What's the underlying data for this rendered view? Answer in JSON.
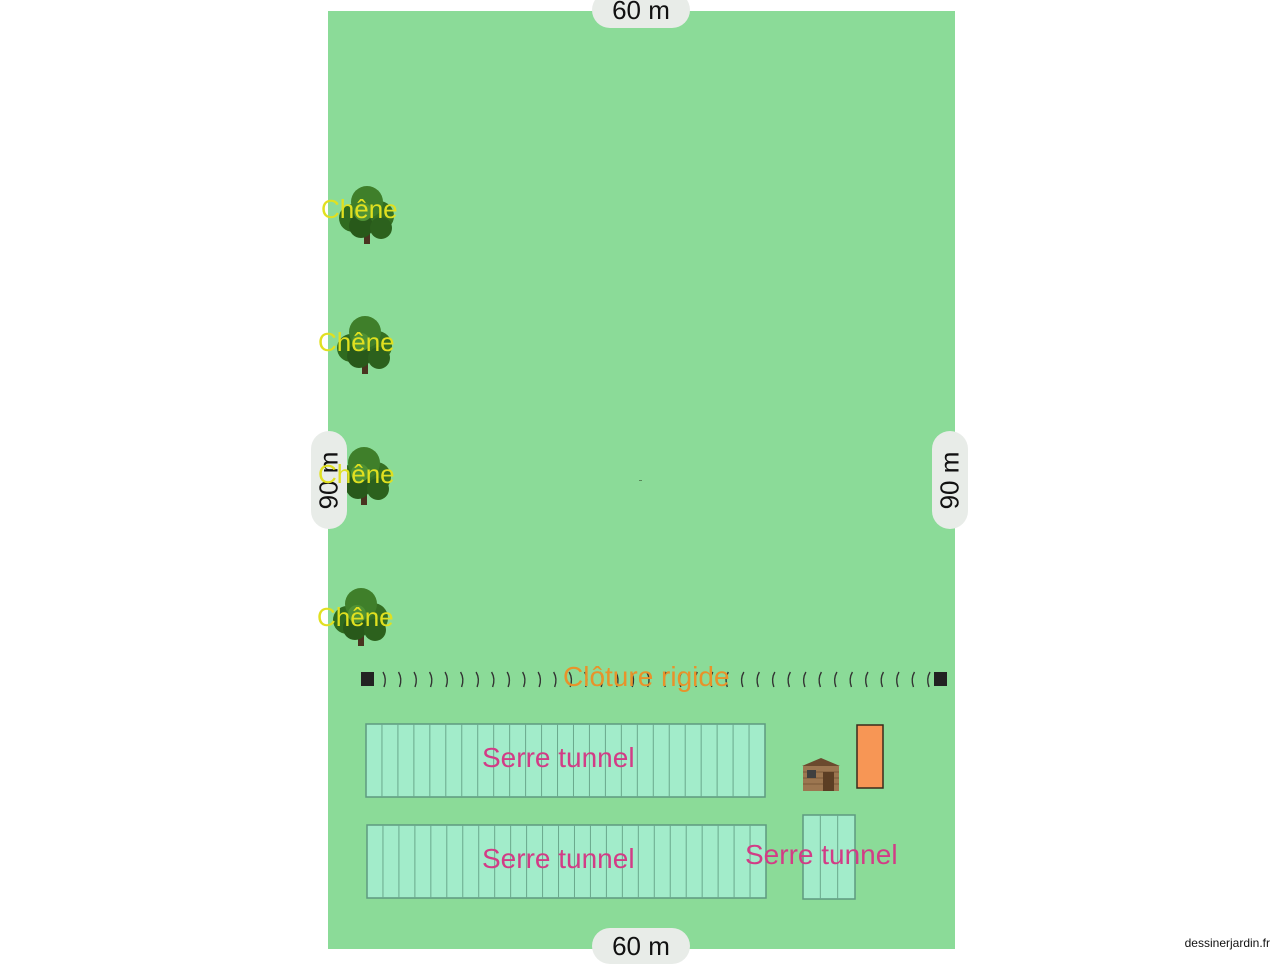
{
  "dimensions": {
    "top": "60 m",
    "bottom": "60 m",
    "left": "90 m",
    "right": "90 m"
  },
  "trees": [
    {
      "label": "Chêne"
    },
    {
      "label": "Chêne"
    },
    {
      "label": "Chêne"
    },
    {
      "label": "Chêne"
    }
  ],
  "fence": {
    "label": "Clôture rigide"
  },
  "greenhouses": [
    {
      "label": "Serre tunnel"
    },
    {
      "label": "Serre tunnel"
    },
    {
      "label": "Serre tunnel"
    }
  ],
  "shed": {
    "icon": "garden-shed-icon"
  },
  "tank": {
    "color": "#f79655"
  },
  "colors": {
    "lawn": "#8bdb98",
    "greenhouse_fill": "#a2ecca",
    "greenhouse_stroke": "#5e9a80",
    "tree_label": "#e0e020",
    "fence_label": "#e8922a",
    "serre_label": "#d23c86"
  },
  "watermark": "dessinerjardin.fr"
}
